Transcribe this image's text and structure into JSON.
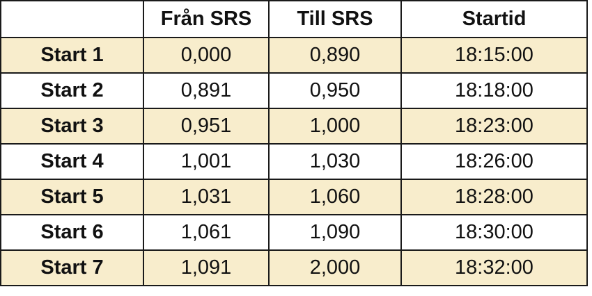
{
  "table": {
    "header": [
      "Från SRS",
      "Till SRS",
      "Startid"
    ],
    "rows": [
      [
        "Start 1",
        "0,000",
        "0,890",
        "18:15:00"
      ],
      [
        "Start 2",
        "0,891",
        "0,950",
        "18:18:00"
      ],
      [
        "Start 3",
        "0,951",
        "1,000",
        "18:23:00"
      ],
      [
        "Start 4",
        "1,001",
        "1,030",
        "18:26:00"
      ],
      [
        "Start 5",
        "1,031",
        "1,060",
        "18:28:00"
      ],
      [
        "Start 6",
        "1,061",
        "1,090",
        "18:30:00"
      ],
      [
        "Start 7",
        "1,091",
        "2,000",
        "18:32:00"
      ]
    ]
  }
}
